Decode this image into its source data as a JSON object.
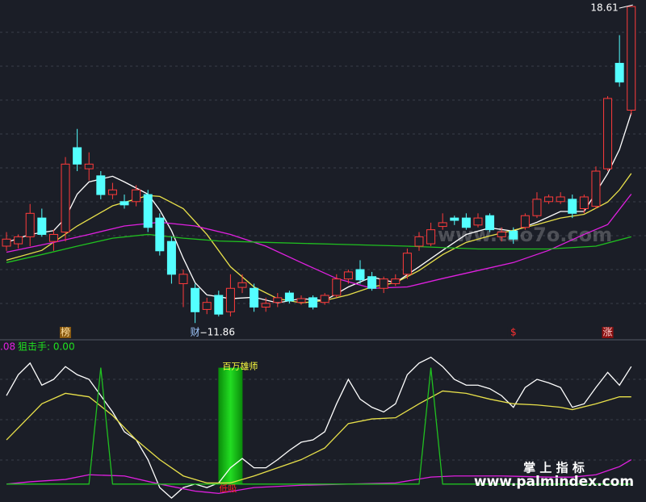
{
  "chart_data": [
    {
      "type": "candlestick",
      "xlim": [
        -0.55,
        54.25
      ],
      "ylim": [
        11.52,
        18.75
      ],
      "up_color": "#ff3b3b",
      "down_color": "#54ffff",
      "candles": [
        [
          13.5,
          13.8,
          13.4,
          13.65
        ],
        [
          13.55,
          13.75,
          13.45,
          13.7
        ],
        [
          13.7,
          14.4,
          13.5,
          14.2
        ],
        [
          14.1,
          14.3,
          13.7,
          13.75
        ],
        [
          13.6,
          13.85,
          13.4,
          13.75
        ],
        [
          13.8,
          15.4,
          13.6,
          15.25
        ],
        [
          15.6,
          16.0,
          15.1,
          15.25
        ],
        [
          15.15,
          15.5,
          14.9,
          15.25
        ],
        [
          15.0,
          15.1,
          14.5,
          14.6
        ],
        [
          14.6,
          14.85,
          14.5,
          14.7
        ],
        [
          14.45,
          14.6,
          14.3,
          14.38
        ],
        [
          14.45,
          14.8,
          14.35,
          14.7
        ],
        [
          14.6,
          14.7,
          13.8,
          13.9
        ],
        [
          14.1,
          14.2,
          13.3,
          13.4
        ],
        [
          13.6,
          13.7,
          12.7,
          12.9
        ],
        [
          12.7,
          13.0,
          12.2,
          12.9
        ],
        [
          12.6,
          12.7,
          11.86,
          12.1
        ],
        [
          12.15,
          12.4,
          12.05,
          12.3
        ],
        [
          12.45,
          12.55,
          12.0,
          12.05
        ],
        [
          12.1,
          12.9,
          12.0,
          12.6
        ],
        [
          12.62,
          12.9,
          12.5,
          12.72
        ],
        [
          12.6,
          12.7,
          12.1,
          12.2
        ],
        [
          12.2,
          12.4,
          12.1,
          12.28
        ],
        [
          12.3,
          12.5,
          12.2,
          12.4
        ],
        [
          12.5,
          12.55,
          12.28,
          12.33
        ],
        [
          12.3,
          12.45,
          12.25,
          12.38
        ],
        [
          12.4,
          12.45,
          12.15,
          12.2
        ],
        [
          12.3,
          12.5,
          12.25,
          12.45
        ],
        [
          12.45,
          12.9,
          12.4,
          12.8
        ],
        [
          12.8,
          13.0,
          12.7,
          12.95
        ],
        [
          13.0,
          13.2,
          12.7,
          12.78
        ],
        [
          12.85,
          12.95,
          12.55,
          12.6
        ],
        [
          12.6,
          12.85,
          12.5,
          12.8
        ],
        [
          12.7,
          12.9,
          12.65,
          12.8
        ],
        [
          12.9,
          13.45,
          12.8,
          13.35
        ],
        [
          13.5,
          13.8,
          13.4,
          13.7
        ],
        [
          13.55,
          14.0,
          13.5,
          13.85
        ],
        [
          13.92,
          14.2,
          13.85,
          14.0
        ],
        [
          14.1,
          14.15,
          13.95,
          14.05
        ],
        [
          14.1,
          14.2,
          13.85,
          13.9
        ],
        [
          13.95,
          14.2,
          13.9,
          14.1
        ],
        [
          14.15,
          14.2,
          13.8,
          13.85
        ],
        [
          13.7,
          13.9,
          13.6,
          13.8
        ],
        [
          13.82,
          13.9,
          13.55,
          13.65
        ],
        [
          13.9,
          14.2,
          13.85,
          14.15
        ],
        [
          14.15,
          14.65,
          14.1,
          14.5
        ],
        [
          14.45,
          14.6,
          14.4,
          14.55
        ],
        [
          14.45,
          14.65,
          14.4,
          14.55
        ],
        [
          14.5,
          14.6,
          14.1,
          14.2
        ],
        [
          14.3,
          14.6,
          14.2,
          14.55
        ],
        [
          14.35,
          15.2,
          14.3,
          15.1
        ],
        [
          15.15,
          16.7,
          15.1,
          16.65
        ],
        [
          17.4,
          18.0,
          16.9,
          17.0
        ],
        [
          16.4,
          18.61,
          16.3,
          18.61
        ]
      ],
      "lines": [
        {
          "color": "#ffffff",
          "x": [
            0,
            2,
            4,
            5,
            6,
            7,
            9,
            10,
            12,
            13,
            14,
            15,
            16,
            17,
            19,
            21,
            23,
            25,
            27,
            29,
            31,
            33,
            35,
            37,
            39,
            41,
            43,
            45,
            47,
            49,
            51,
            52,
            53
          ],
          "values": [
            13.58,
            13.75,
            13.83,
            14.1,
            14.61,
            14.87,
            14.99,
            14.87,
            14.61,
            14.27,
            13.83,
            13.24,
            12.72,
            12.46,
            12.38,
            12.41,
            12.29,
            12.38,
            12.34,
            12.63,
            12.84,
            12.72,
            13.06,
            13.41,
            13.75,
            13.89,
            13.82,
            14.01,
            14.24,
            14.24,
            15.05,
            15.56,
            16.34
          ]
        },
        {
          "color": "#e8e04a",
          "x": [
            0,
            3,
            6,
            9,
            12,
            13,
            15,
            17,
            19,
            21,
            23,
            25,
            27,
            29,
            31,
            33,
            35,
            37,
            39,
            41,
            43,
            45,
            47,
            49,
            51,
            52,
            53
          ],
          "values": [
            13.2,
            13.41,
            13.93,
            14.36,
            14.58,
            14.56,
            14.3,
            13.75,
            13.06,
            12.63,
            12.38,
            12.29,
            12.34,
            12.46,
            12.63,
            12.72,
            12.98,
            13.32,
            13.58,
            13.72,
            13.84,
            13.96,
            14.1,
            14.18,
            14.44,
            14.7,
            15.05
          ]
        },
        {
          "color": "#e020e0",
          "x": [
            0,
            4,
            7,
            10,
            13,
            16,
            19,
            22,
            25,
            28,
            31,
            34,
            37,
            40,
            43,
            46,
            49,
            51,
            53
          ],
          "values": [
            13.37,
            13.58,
            13.75,
            13.93,
            14.01,
            13.93,
            13.75,
            13.5,
            13.15,
            12.81,
            12.6,
            12.63,
            12.81,
            12.98,
            13.15,
            13.41,
            13.75,
            13.96,
            14.61
          ]
        },
        {
          "color": "#20c020",
          "x": [
            0,
            3,
            6,
            9,
            12,
            15,
            18,
            22,
            28,
            34,
            40,
            46,
            50,
            53
          ],
          "values": [
            13.15,
            13.32,
            13.5,
            13.67,
            13.75,
            13.67,
            13.61,
            13.58,
            13.54,
            13.5,
            13.44,
            13.44,
            13.5,
            13.7
          ]
        }
      ],
      "high_label": "18.61",
      "low_label": "11.86",
      "signals": [
        {
          "index": 5,
          "text": "榜",
          "color": "#ffe0a0",
          "background": "#8a5a10"
        },
        {
          "index": 16,
          "text": "财",
          "color": "#a0c8ff",
          "background": "#1b1e27"
        },
        {
          "index": 43,
          "text": "$",
          "color": "#ff3030",
          "background": "#1b1e27"
        },
        {
          "index": 51,
          "text": "涨",
          "color": "#ffd0d0",
          "background": "#8a1010"
        }
      ]
    },
    {
      "type": "line",
      "xlim": [
        -0.55,
        54.25
      ],
      "ylim": [
        -14,
        115
      ],
      "header": ".08",
      "subheader": "狙击手: 0.00",
      "series": [
        {
          "color": "#ffffff",
          "x": [
            0,
            1,
            2,
            3,
            4,
            5,
            6,
            7,
            8,
            9,
            10,
            11,
            12,
            13,
            14,
            15,
            16,
            17,
            18,
            19,
            20,
            21,
            22,
            23,
            24,
            25,
            26,
            27,
            28,
            29,
            30,
            31,
            32,
            33,
            34,
            35,
            36,
            37,
            38,
            39,
            40,
            41,
            42,
            43,
            44,
            45,
            46,
            47,
            48,
            49,
            50,
            51,
            52,
            53
          ],
          "values": [
            76,
            94,
            104,
            85,
            90,
            101,
            94,
            90,
            76,
            62,
            45,
            38,
            21,
            -3,
            -12,
            -3,
            0,
            -3,
            1,
            14,
            22,
            14,
            14,
            21,
            29,
            36,
            38,
            45,
            69,
            90,
            73,
            66,
            62,
            69,
            94,
            104,
            109,
            101,
            90,
            85,
            85,
            82,
            76,
            66,
            83,
            90,
            87,
            83,
            66,
            69,
            83,
            96,
            85,
            101
          ]
        },
        {
          "color": "#e8e04a",
          "x": [
            0,
            3,
            5,
            7,
            9,
            11,
            13,
            15,
            17,
            19,
            21,
            23,
            25,
            27,
            29,
            31,
            33,
            35,
            37,
            39,
            41,
            43,
            45,
            47,
            48,
            50,
            52,
            53
          ],
          "values": [
            38,
            69,
            78,
            75,
            59,
            38,
            21,
            7,
            1,
            1,
            7,
            14,
            21,
            31,
            52,
            56,
            57,
            69,
            80,
            78,
            73,
            69,
            68,
            66,
            64,
            69,
            75,
            75
          ]
        },
        {
          "color": "#e020e0",
          "x": [
            0,
            2,
            5,
            7,
            10,
            13,
            16,
            18,
            21,
            25,
            29,
            33,
            36,
            38,
            42,
            46,
            48,
            50,
            52,
            53
          ],
          "values": [
            0,
            2,
            4,
            8,
            7,
            0,
            -6,
            -8,
            -3,
            -1,
            0,
            1,
            6,
            7,
            7,
            6,
            6,
            8,
            15,
            21
          ]
        },
        {
          "color": "#20c020",
          "x": [
            0,
            1,
            2,
            3,
            4,
            5,
            6,
            7,
            8,
            9,
            10,
            11,
            12,
            13,
            14,
            15,
            16,
            17,
            18,
            19,
            20,
            21,
            22,
            23,
            24,
            25,
            26,
            27,
            28,
            29,
            30,
            31,
            32,
            33,
            34,
            35,
            36,
            37,
            38,
            39,
            40,
            41,
            42,
            43,
            44,
            45,
            46,
            47,
            48,
            49,
            50,
            51,
            52,
            53
          ],
          "values": [
            0,
            0,
            0,
            0,
            0,
            0,
            0,
            0,
            100,
            0,
            0,
            0,
            0,
            0,
            0,
            0,
            0,
            0,
            0,
            0,
            0,
            0,
            0,
            0,
            0,
            0,
            0,
            0,
            0,
            0,
            0,
            0,
            0,
            0,
            0,
            0,
            100,
            0,
            0,
            0,
            0,
            0,
            0,
            0,
            0,
            0,
            0,
            0,
            0,
            0,
            0,
            0,
            0,
            0
          ]
        }
      ],
      "highlight": {
        "x": 19,
        "from": 0,
        "to": 100,
        "color": "#22dd22",
        "label": "百万雄师",
        "bottom_label": "低吸"
      }
    }
  ],
  "watermarks": {
    "site": "www.tao7o.com",
    "brand": "掌 上 指 标",
    "url": "www.palmindex.com"
  }
}
